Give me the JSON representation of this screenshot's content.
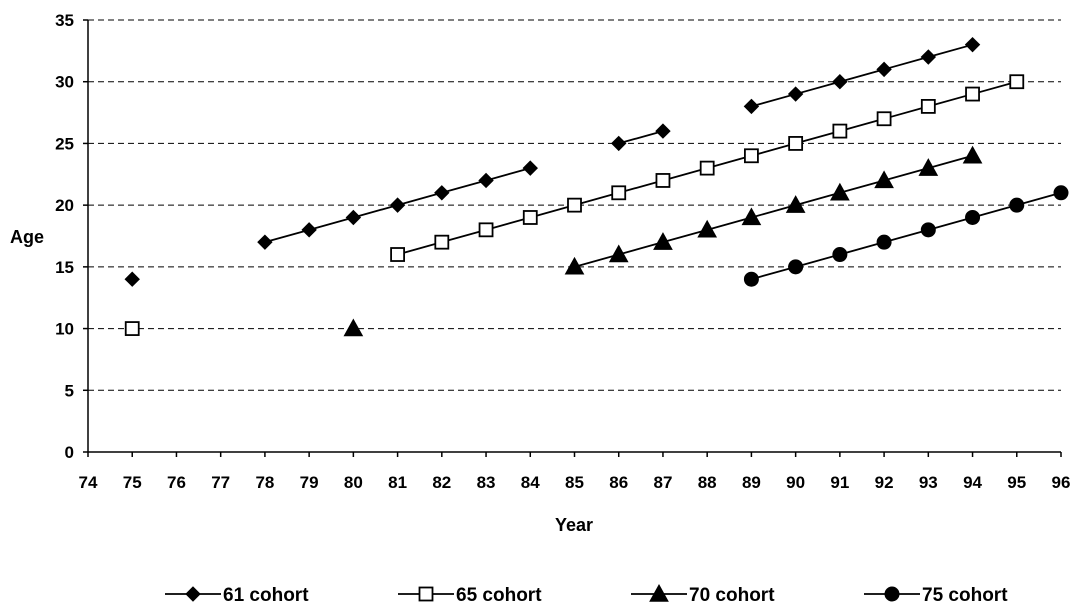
{
  "chart_data": {
    "type": "line",
    "title": "",
    "xlabel": "Year",
    "ylabel": "Age",
    "xlim": [
      74,
      96
    ],
    "ylim": [
      0,
      35
    ],
    "x_ticks": [
      74,
      75,
      76,
      77,
      78,
      79,
      80,
      81,
      82,
      83,
      84,
      85,
      86,
      87,
      88,
      89,
      90,
      91,
      92,
      93,
      94,
      95,
      96
    ],
    "y_ticks": [
      0,
      5,
      10,
      15,
      20,
      25,
      30,
      35
    ],
    "grid": "horizontal dashed",
    "legend_position": "bottom",
    "series": [
      {
        "name": "61 cohort",
        "marker": "diamond",
        "fill": "#000000",
        "points": [
          [
            75,
            14
          ],
          [
            78,
            17
          ],
          [
            79,
            18
          ],
          [
            80,
            19
          ],
          [
            81,
            20
          ],
          [
            82,
            21
          ],
          [
            83,
            22
          ],
          [
            84,
            23
          ],
          [
            86,
            25
          ],
          [
            87,
            26
          ],
          [
            89,
            28
          ],
          [
            90,
            29
          ],
          [
            91,
            30
          ],
          [
            92,
            31
          ],
          [
            93,
            32
          ],
          [
            94,
            33
          ]
        ],
        "segments": [
          [
            75
          ],
          [
            78,
            79,
            80,
            81,
            82,
            83,
            84
          ],
          [
            86,
            87
          ],
          [
            89,
            90,
            91,
            92,
            93,
            94
          ]
        ]
      },
      {
        "name": "65 cohort",
        "marker": "square",
        "fill": "#ffffff",
        "points": [
          [
            75,
            10
          ],
          [
            81,
            16
          ],
          [
            82,
            17
          ],
          [
            83,
            18
          ],
          [
            84,
            19
          ],
          [
            85,
            20
          ],
          [
            86,
            21
          ],
          [
            87,
            22
          ],
          [
            88,
            23
          ],
          [
            89,
            24
          ],
          [
            90,
            25
          ],
          [
            91,
            26
          ],
          [
            92,
            27
          ],
          [
            93,
            28
          ],
          [
            94,
            29
          ],
          [
            95,
            30
          ]
        ],
        "segments": [
          [
            75
          ],
          [
            81,
            82,
            83,
            84,
            85,
            86,
            87,
            88,
            89,
            90,
            91,
            92,
            93,
            94,
            95
          ]
        ]
      },
      {
        "name": "70 cohort",
        "marker": "triangle",
        "fill": "#000000",
        "points": [
          [
            80,
            10
          ],
          [
            85,
            15
          ],
          [
            86,
            16
          ],
          [
            87,
            17
          ],
          [
            88,
            18
          ],
          [
            89,
            19
          ],
          [
            90,
            20
          ],
          [
            91,
            21
          ],
          [
            92,
            22
          ],
          [
            93,
            23
          ],
          [
            94,
            24
          ]
        ],
        "segments": [
          [
            80
          ],
          [
            85,
            86,
            87,
            88,
            89,
            90,
            91,
            92,
            93,
            94
          ]
        ]
      },
      {
        "name": "75 cohort",
        "marker": "circle",
        "fill": "#000000",
        "points": [
          [
            89,
            14
          ],
          [
            90,
            15
          ],
          [
            91,
            16
          ],
          [
            92,
            17
          ],
          [
            93,
            18
          ],
          [
            94,
            19
          ],
          [
            95,
            20
          ],
          [
            96,
            21
          ]
        ],
        "segments": [
          [
            89,
            90,
            91,
            92,
            93,
            94,
            95,
            96
          ]
        ]
      }
    ]
  }
}
